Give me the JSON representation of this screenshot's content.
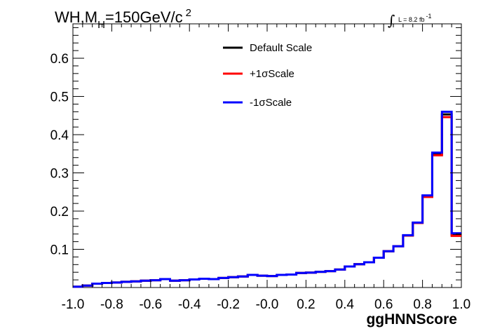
{
  "chart_data": {
    "type": "line",
    "step": true,
    "title": {
      "base": "WH,M",
      "sub": "H",
      "rest": "=150GeV/c",
      "sup": "2"
    },
    "lumi": {
      "prefix": "∫",
      "text": "L = 8.2 fb",
      "sup": "-1"
    },
    "xlabel": "ggHNNScore",
    "ylabel": "",
    "xlim": [
      -1.0,
      1.0
    ],
    "ylim": [
      0.0,
      0.69
    ],
    "x_ticks": [
      "-1.0",
      "-0.8",
      "-0.6",
      "-0.4",
      "-0.2",
      "-0.0",
      "0.2",
      "0.4",
      "0.6",
      "0.8",
      "1.0"
    ],
    "y_ticks": [
      "0.1",
      "0.2",
      "0.3",
      "0.4",
      "0.5",
      "0.6"
    ],
    "legend_position": "top-center",
    "bin_edges": [
      -1.0,
      -0.95,
      -0.9,
      -0.85,
      -0.8,
      -0.75,
      -0.7,
      -0.65,
      -0.6,
      -0.55,
      -0.5,
      -0.45,
      -0.4,
      -0.35,
      -0.3,
      -0.25,
      -0.2,
      -0.15,
      -0.1,
      -0.05,
      0.0,
      0.05,
      0.1,
      0.15,
      0.2,
      0.25,
      0.3,
      0.35,
      0.4,
      0.45,
      0.5,
      0.55,
      0.6,
      0.65,
      0.7,
      0.75,
      0.8,
      0.85,
      0.9,
      0.95,
      1.0
    ],
    "series": [
      {
        "name": "Default Scale",
        "color": "#000000",
        "values": [
          0.002,
          0.005,
          0.01,
          0.012,
          0.013,
          0.015,
          0.016,
          0.018,
          0.019,
          0.022,
          0.018,
          0.019,
          0.021,
          0.023,
          0.022,
          0.025,
          0.027,
          0.029,
          0.033,
          0.031,
          0.03,
          0.033,
          0.034,
          0.038,
          0.039,
          0.041,
          0.043,
          0.047,
          0.055,
          0.061,
          0.066,
          0.078,
          0.095,
          0.108,
          0.136,
          0.169,
          0.239,
          0.349,
          0.453,
          0.138
        ]
      },
      {
        "name": "+1σScale",
        "color": "#ff0000",
        "values": [
          0.002,
          0.005,
          0.01,
          0.012,
          0.013,
          0.015,
          0.016,
          0.018,
          0.019,
          0.022,
          0.018,
          0.019,
          0.021,
          0.023,
          0.022,
          0.025,
          0.027,
          0.029,
          0.033,
          0.031,
          0.03,
          0.033,
          0.034,
          0.038,
          0.039,
          0.041,
          0.043,
          0.047,
          0.055,
          0.061,
          0.066,
          0.078,
          0.095,
          0.108,
          0.136,
          0.169,
          0.237,
          0.346,
          0.446,
          0.135
        ]
      },
      {
        "name": "-1σScale",
        "color": "#0000ff",
        "values": [
          0.002,
          0.005,
          0.01,
          0.012,
          0.013,
          0.015,
          0.016,
          0.018,
          0.019,
          0.022,
          0.018,
          0.019,
          0.021,
          0.023,
          0.022,
          0.025,
          0.027,
          0.029,
          0.033,
          0.031,
          0.03,
          0.033,
          0.034,
          0.038,
          0.039,
          0.041,
          0.043,
          0.047,
          0.055,
          0.061,
          0.066,
          0.078,
          0.095,
          0.108,
          0.137,
          0.17,
          0.241,
          0.353,
          0.46,
          0.142
        ]
      }
    ]
  }
}
